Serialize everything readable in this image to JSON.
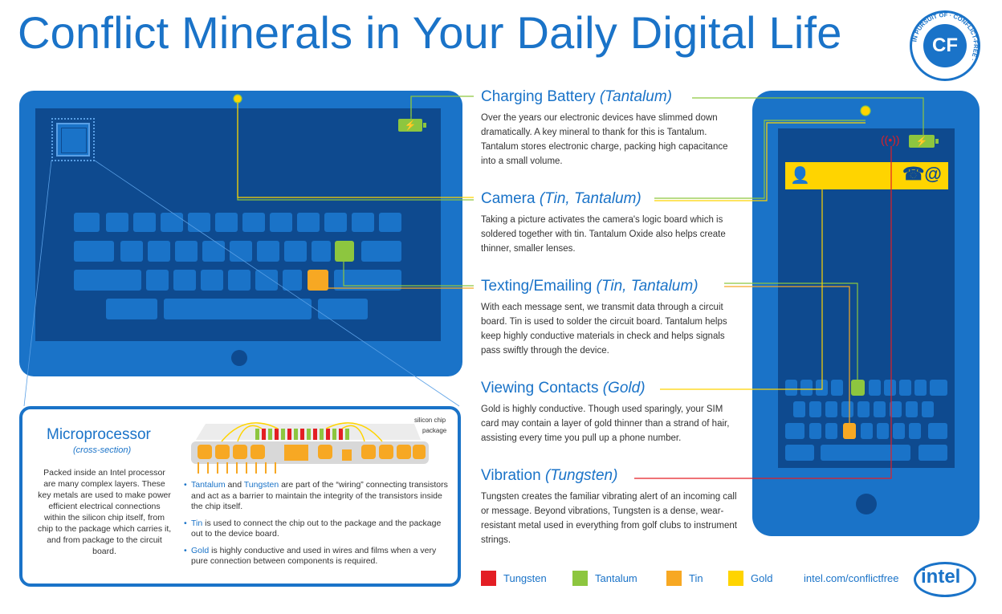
{
  "header": {
    "title": "Conflict Minerals in Your Daily Digital Life",
    "seal_text": "CF",
    "seal_ring": "IN PURSUIT OF CONFLICT-FREE"
  },
  "sections": {
    "battery": {
      "title": "Charging Battery",
      "minerals": "(Tantalum)",
      "body": "Over the years our electronic devices have slimmed down dramatically. A key mineral to thank for this is Tantalum. Tantalum stores electronic charge, packing high capacitance into a small volume."
    },
    "camera": {
      "title": "Camera",
      "minerals": "(Tin, Tantalum)",
      "body": "Taking a picture activates the camera's logic board which is soldered together with tin. Tantalum Oxide also helps create thinner, smaller lenses."
    },
    "texting": {
      "title": "Texting/Emailing",
      "minerals": "(Tin, Tantalum)",
      "body": "With each message sent, we transmit data through a circuit board. Tin is used to solder the circuit board. Tantalum helps keep highly conductive materials in check and helps signals pass swiftly through the device."
    },
    "contacts": {
      "title": "Viewing Contacts",
      "minerals": "(Gold)",
      "body": "Gold is highly conductive. Though used sparingly, your SIM card may contain a layer of gold thinner than a strand of hair, assisting every time you pull up a phone number."
    },
    "vibration": {
      "title": "Vibration",
      "minerals": "(Tungsten)",
      "body": "Tungsten creates the familiar vibrating alert of an incoming call or message. Beyond vibrations, Tungsten is a dense, wear-resistant metal used in everything from golf clubs to instrument strings."
    }
  },
  "microprocessor": {
    "title": "Microprocessor",
    "subtitle": "(cross-section)",
    "body": "Packed inside an Intel processor are many complex layers. These key metals are used to make power efficient electrical connections within the silicon chip itself, from chip to the package which carries it, and from package to the circuit board.",
    "label_chip": "silicon chip",
    "label_package": "package",
    "bullets": [
      {
        "k1": "Tantalum",
        "mid": " and ",
        "k2": "Tungsten",
        "text": " are part of the “wiring” connecting transistors and act as a barrier to maintain the integrity of the transistors inside the chip itself."
      },
      {
        "k1": "Tin",
        "text": " is used to connect the chip out to the package and the package out to the device board."
      },
      {
        "k1": "Gold",
        "text": " is highly conductive  and used in wires and films when a very pure connection between components is required."
      }
    ]
  },
  "legend": [
    {
      "label": "Tungsten",
      "color": "#e31e24"
    },
    {
      "label": "Tantalum",
      "color": "#8dc63f"
    },
    {
      "label": "Tin",
      "color": "#f7a823"
    },
    {
      "label": "Gold",
      "color": "#ffd400"
    }
  ],
  "footer": {
    "url": "intel.com/conflictfree",
    "logo": "intel"
  },
  "phone": {
    "contact_icons": "☎@",
    "person_icon": "👤"
  },
  "colors": {
    "blue": "#1a73c8",
    "dark_blue": "#0e4a8f",
    "tungsten": "#e31e24",
    "tantalum": "#8dc63f",
    "tin": "#f7a823",
    "gold": "#ffd400"
  }
}
